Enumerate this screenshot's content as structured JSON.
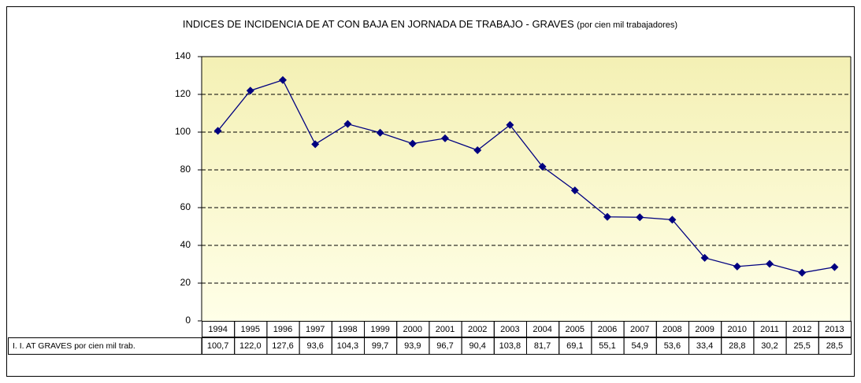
{
  "chart_data": {
    "type": "line",
    "title": "INDICES DE INCIDENCIA DE AT CON BAJA EN JORNADA DE TRABAJO - GRAVES",
    "subtitle": "(por cien mil trabajadores)",
    "categories": [
      "1994",
      "1995",
      "1996",
      "1997",
      "1998",
      "1999",
      "2000",
      "2001",
      "2002",
      "2003",
      "2004",
      "2005",
      "2006",
      "2007",
      "2008",
      "2009",
      "2010",
      "2011",
      "2012",
      "2013"
    ],
    "series": [
      {
        "name": "I. I. AT GRAVES por cien mil trab.",
        "color": "#000080",
        "values": [
          100.7,
          122.0,
          127.6,
          93.6,
          104.3,
          99.7,
          93.9,
          96.7,
          90.4,
          103.8,
          81.7,
          69.1,
          55.1,
          54.9,
          53.6,
          33.4,
          28.8,
          30.2,
          25.5,
          28.5
        ],
        "value_labels": [
          "100,7",
          "122,0",
          "127,6",
          "93,6",
          "104,3",
          "99,7",
          "93,9",
          "96,7",
          "90,4",
          "103,8",
          "81,7",
          "69,1",
          "55,1",
          "54,9",
          "53,6",
          "33,4",
          "28,8",
          "30,2",
          "25,5",
          "28,5"
        ]
      }
    ],
    "ylim": [
      0,
      140
    ],
    "yticks": [
      0,
      20,
      40,
      60,
      80,
      100,
      120,
      140
    ],
    "grid": true
  }
}
